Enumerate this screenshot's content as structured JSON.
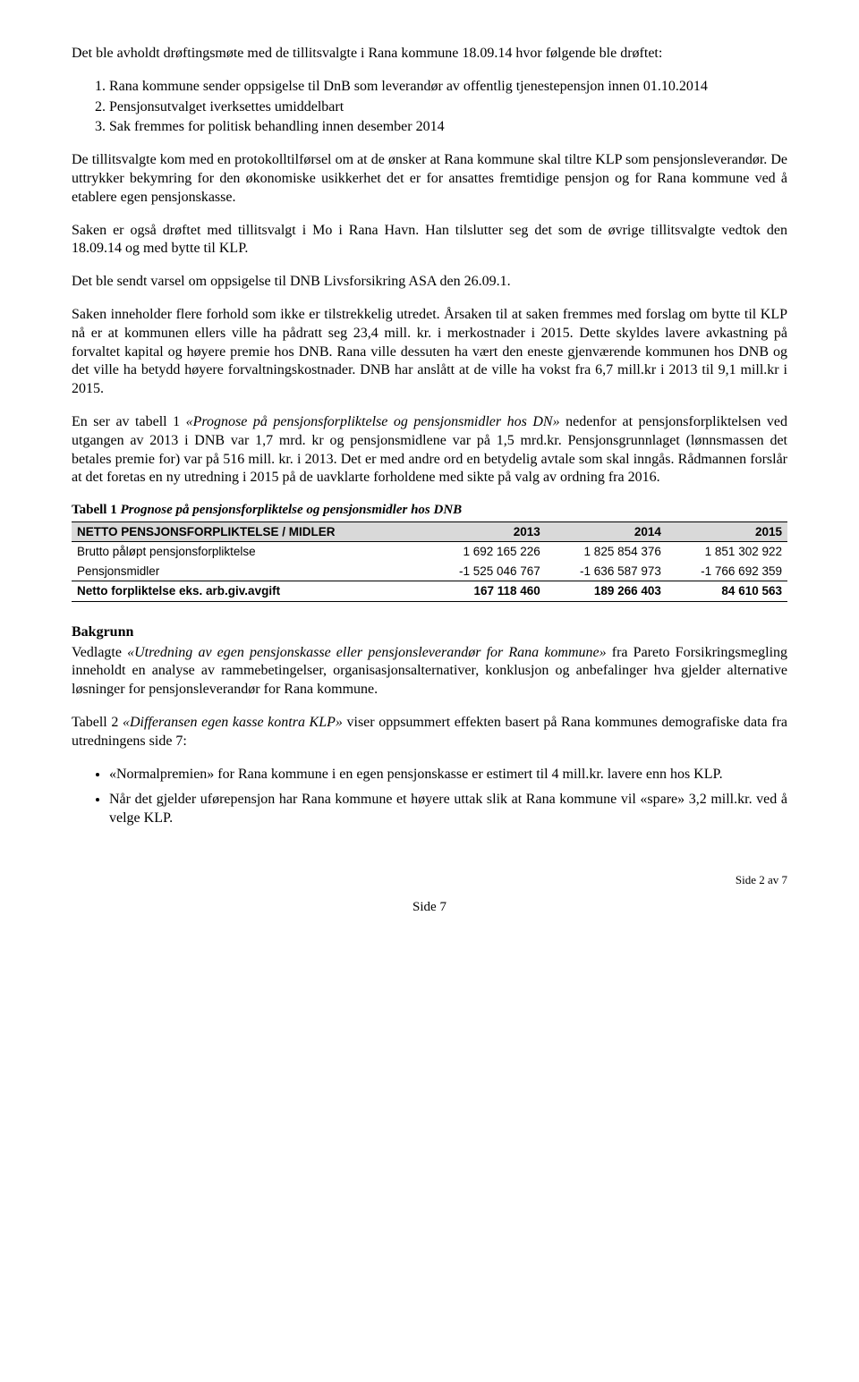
{
  "intro": "Det ble avholdt drøftingsmøte med de tillitsvalgte i Rana kommune 18.09.14 hvor følgende ble drøftet:",
  "numbered": [
    "Rana kommune sender oppsigelse til DnB som leverandør av offentlig tjenestepensjon innen 01.10.2014",
    "Pensjonsutvalget iverksettes umiddelbart",
    "Sak fremmes for politisk behandling innen desember 2014"
  ],
  "p1": "De tillitsvalgte kom med en protokolltilførsel om at de ønsker at Rana kommune skal tiltre KLP som pensjonsleverandør. De uttrykker bekymring for den økonomiske usikkerhet det er for ansattes fremtidige pensjon og for Rana kommune ved å etablere egen pensjonskasse.",
  "p2": "Saken er også drøftet med tillitsvalgt i Mo i Rana Havn. Han tilslutter seg det som de øvrige tillitsvalgte vedtok den 18.09.14 og med bytte til KLP.",
  "p3": "Det ble sendt varsel om oppsigelse til DNB Livsforsikring ASA den 26.09.1.",
  "p4": "Saken inneholder flere forhold som ikke er tilstrekkelig utredet. Årsaken til at saken fremmes med forslag om bytte til KLP nå er at kommunen ellers ville ha pådratt seg 23,4 mill. kr. i merkostnader i 2015. Dette skyldes lavere avkastning på forvaltet kapital og høyere premie hos DNB. Rana ville dessuten ha vært den eneste gjenværende kommunen hos DNB og det ville ha betydd høyere forvaltningskostnader. DNB har anslått at de ville ha vokst fra 6,7 mill.kr i 2013 til 9,1 mill.kr i 2015.",
  "p5": "nedenfor at pensjonsforpliktelsen ved utgangen av 2013 i DNB var 1,7 mrd. kr og pensjonsmidlene var på 1,5 mrd.kr. Pensjonsgrunnlaget (lønnsmassen det betales premie for) var på 516 mill. kr. i 2013. Det er med andre ord en betydelig avtale som skal inngås. Rådmannen forslår at det foretas en ny utredning i 2015 på de uavklarte forholdene med sikte på valg av ordning fra 2016.",
  "p5_lead": "En ser av tabell 1 ",
  "p5_italic": "«Prognose på pensjonsforpliktelse og pensjonsmidler hos DN»",
  "table1_caption_lead": "Tabell 1 ",
  "table1_caption_italic": "Prognose på pensjonsforpliktelse og pensjonsmidler hos DNB",
  "table1": {
    "header": [
      "NETTO PENSJONSFORPLIKTELSE / MIDLER",
      "2013",
      "2014",
      "2015"
    ],
    "rows": [
      [
        "Brutto påløpt pensjonsforpliktelse",
        "1 692 165 226",
        "1 825 854 376",
        "1 851 302 922"
      ],
      [
        "Pensjonsmidler",
        "-1 525 046 767",
        "-1 636 587 973",
        "-1 766 692 359"
      ]
    ],
    "net": [
      "Netto forpliktelse eks. arb.giv.avgift",
      "167 118 460",
      "189 266 403",
      "84 610 563"
    ]
  },
  "bakgrunn_heading": "Bakgrunn",
  "bakgrunn_p1_lead": "Vedlagte ",
  "bakgrunn_p1_italic": "«Utredning av egen pensjonskasse eller pensjonsleverandør for Rana kommune»",
  "bakgrunn_p1_tail": " fra Pareto Forsikringsmegling inneholdt en analyse av rammebetingelser, organisasjonsalternativer, konklusjon og anbefalinger hva gjelder alternative løsninger for pensjonsleverandør for Rana kommune.",
  "bakgrunn_p2_lead": "Tabell 2 ",
  "bakgrunn_p2_italic": "«Differansen egen kasse kontra KLP»",
  "bakgrunn_p2_tail": " viser oppsummert effekten basert på Rana kommunes demografiske data fra utredningens side 7:",
  "bullets": [
    "«Normalpremien» for Rana kommune i en egen pensjonskasse er estimert til 4 mill.kr. lavere enn hos KLP.",
    "Når det gjelder uførepensjon har Rana kommune et høyere uttak slik at Rana kommune vil «spare» 3,2 mill.kr. ved å velge KLP."
  ],
  "footer_right": "Side 2 av 7",
  "footer_center": "Side 7"
}
